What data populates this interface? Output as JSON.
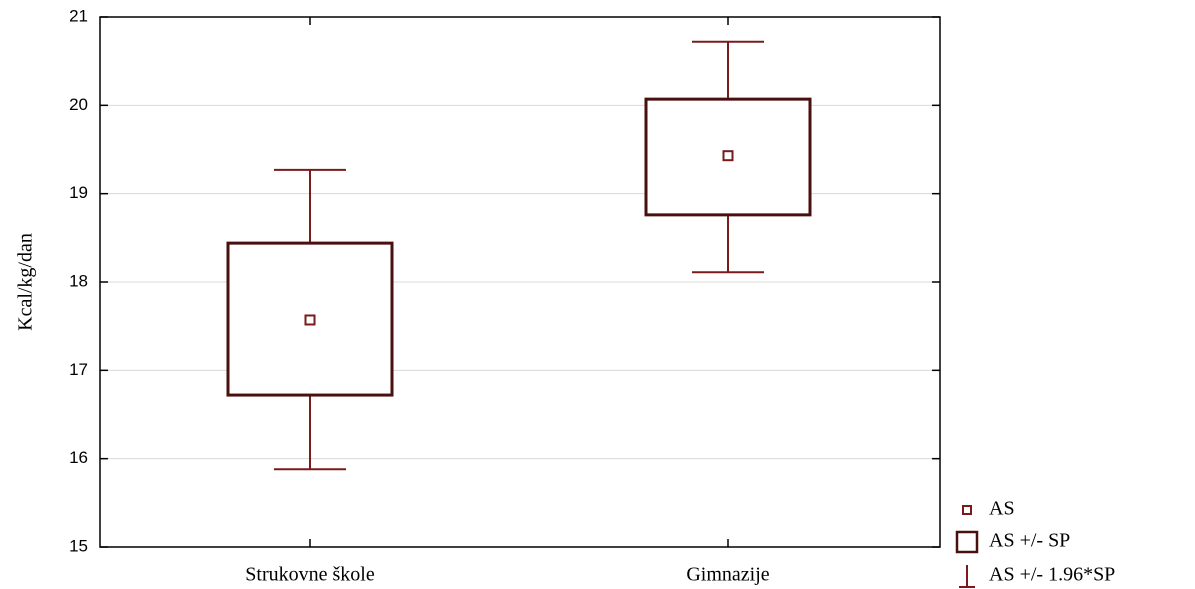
{
  "chart_data": {
    "type": "box",
    "y_label": "Kcal/kg/dan",
    "categories": [
      "Strukovne škole",
      "Gimnazije"
    ],
    "color": "#7a1a1a",
    "series": [
      {
        "name": "AS",
        "values": [
          17.57,
          19.43
        ]
      },
      {
        "name": "AS +/- SP",
        "low": [
          16.72,
          18.76
        ],
        "high": [
          18.44,
          20.07
        ]
      },
      {
        "name": "AS +/- 1.96*SP",
        "low": [
          15.88,
          18.11
        ],
        "high": [
          19.27,
          20.72
        ]
      }
    ],
    "ylim": [
      15,
      21
    ],
    "yticks": [
      15,
      16,
      17,
      18,
      19,
      20,
      21
    ],
    "grid": true
  }
}
